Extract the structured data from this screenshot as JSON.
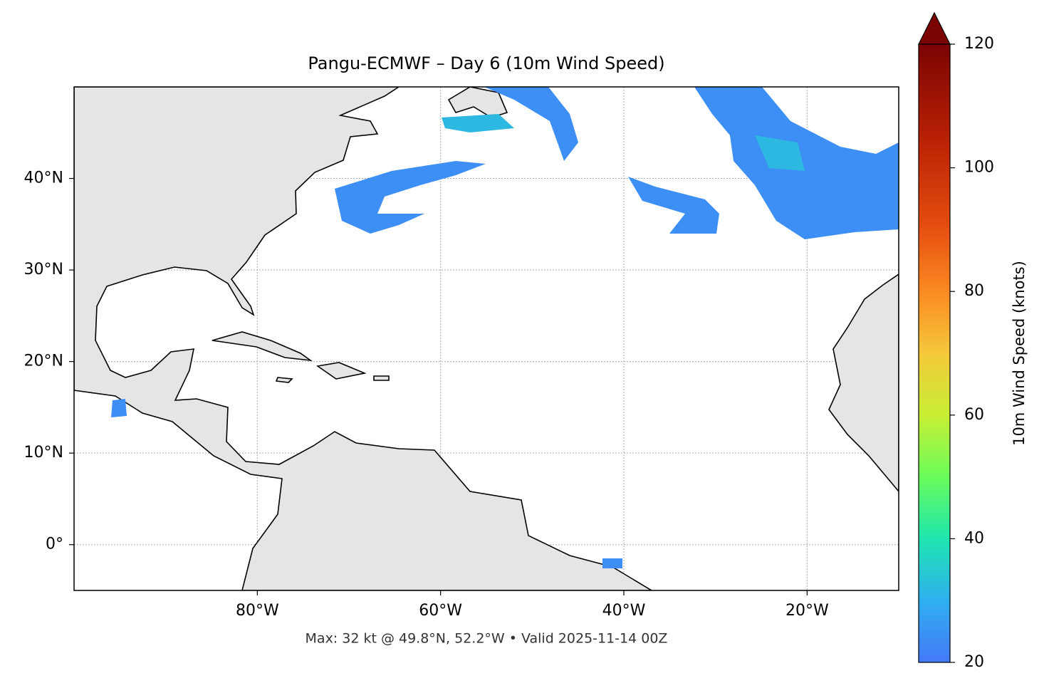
{
  "title": "Pangu-ECMWF – Day 6 (10m Wind Speed)",
  "map": {
    "xlim": [
      -100,
      -10
    ],
    "ylim": [
      -5,
      50
    ],
    "grid": true,
    "xticks": [
      {
        "value": -80,
        "label": "80°W"
      },
      {
        "value": -60,
        "label": "60°W"
      },
      {
        "value": -40,
        "label": "40°W"
      },
      {
        "value": -20,
        "label": "20°W"
      }
    ],
    "yticks": [
      {
        "value": 40,
        "label": "40°N"
      },
      {
        "value": 30,
        "label": "30°N"
      },
      {
        "value": 20,
        "label": "20°N"
      },
      {
        "value": 10,
        "label": "10°N"
      },
      {
        "value": 0,
        "label": "0°"
      }
    ]
  },
  "colorbar": {
    "label": "10m Wind Speed (knots)",
    "lim": [
      20,
      120
    ],
    "ticks": [
      20,
      40,
      60,
      80,
      100,
      120
    ]
  },
  "footer": "Max: 32 kt @ 49.8°N, 52.2°W • Valid 2025-11-14 00Z"
}
